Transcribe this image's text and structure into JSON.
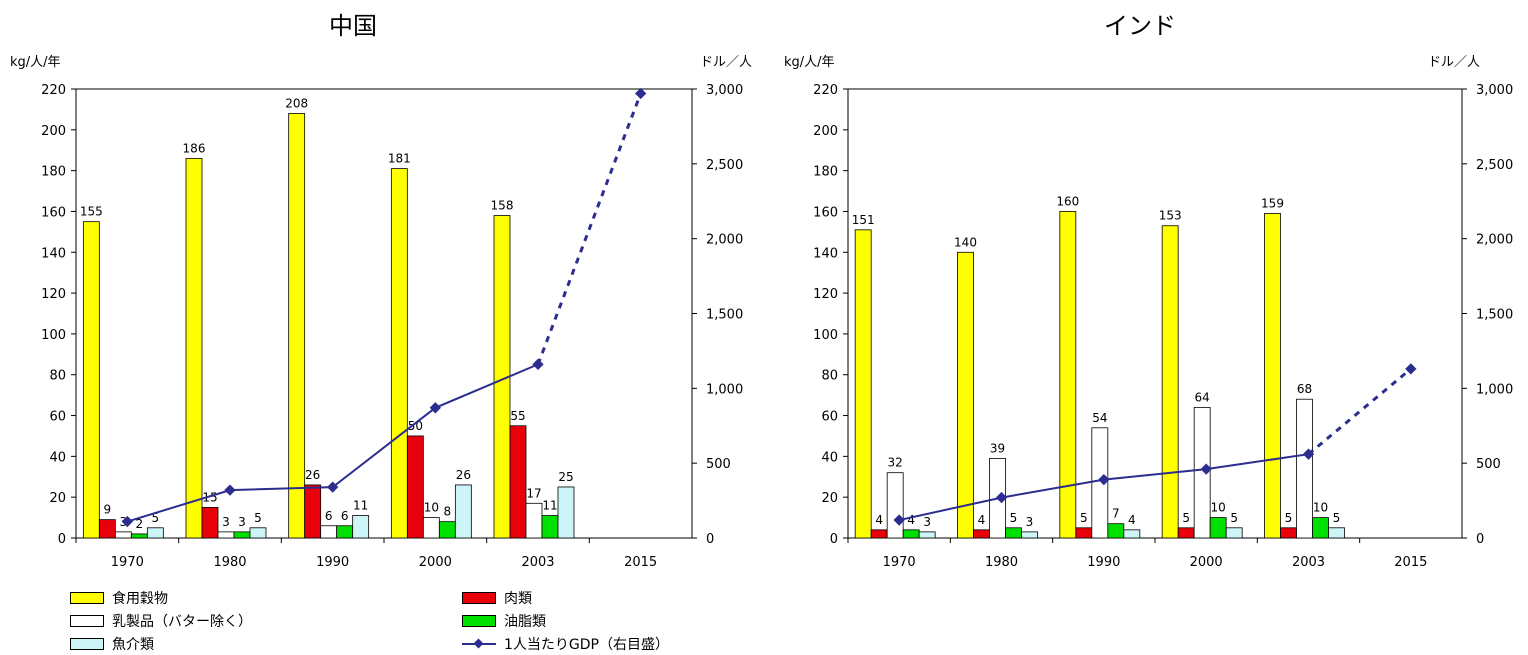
{
  "chart_data": [
    {
      "type": "bar",
      "title": "中国",
      "ylabel_left": "kg/人/年",
      "ylabel_right": "ドル／人",
      "categories": [
        "1970",
        "1980",
        "1990",
        "2000",
        "2003",
        "2015"
      ],
      "ylim": [
        0,
        220
      ],
      "y2lim": [
        0,
        3000
      ],
      "y_ticks": [
        "0",
        "20",
        "40",
        "60",
        "80",
        "100",
        "120",
        "140",
        "160",
        "180",
        "200",
        "220"
      ],
      "y2_ticks": [
        "0",
        "500",
        "1,000",
        "1,500",
        "2,000",
        "2,500",
        "3,000"
      ],
      "series": [
        {
          "name": "食用穀物",
          "color": "#ffff00",
          "values": [
            155,
            186,
            208,
            181,
            158,
            null
          ],
          "labels": [
            "155",
            "186",
            "208",
            "181",
            "158",
            ""
          ]
        },
        {
          "name": "肉類",
          "color": "#e8000b",
          "values": [
            9,
            15,
            26,
            50,
            55,
            null
          ],
          "labels": [
            "9",
            "15",
            "26",
            "50",
            "55",
            ""
          ]
        },
        {
          "name": "乳製品（バター除く）",
          "color": "#ffffff",
          "values": [
            3,
            3,
            6,
            10,
            17,
            null
          ],
          "labels": [
            "3",
            "3",
            "6",
            "10",
            "17",
            ""
          ]
        },
        {
          "name": "油脂類",
          "color": "#00e000",
          "values": [
            2,
            3,
            6,
            8,
            11,
            null
          ],
          "labels": [
            "2",
            "3",
            "6",
            "8",
            "11",
            ""
          ]
        },
        {
          "name": "魚介類",
          "color": "#cdf5f7",
          "values": [
            5,
            5,
            11,
            26,
            25,
            null
          ],
          "labels": [
            "5",
            "5",
            "11",
            "26",
            "25",
            ""
          ]
        }
      ],
      "line_series": {
        "name": "1人当たりGDP（右目盛）",
        "color": "#2b2d8f",
        "values": [
          110,
          320,
          340,
          870,
          1160,
          2970
        ],
        "dashed_from_index": 4
      }
    },
    {
      "type": "bar",
      "title": "インド",
      "ylabel_left": "kg/人/年",
      "ylabel_right": "ドル／人",
      "categories": [
        "1970",
        "1980",
        "1990",
        "2000",
        "2003",
        "2015"
      ],
      "ylim": [
        0,
        220
      ],
      "y2lim": [
        0,
        3000
      ],
      "y_ticks": [
        "0",
        "20",
        "40",
        "60",
        "80",
        "100",
        "120",
        "140",
        "160",
        "180",
        "200",
        "220"
      ],
      "y2_ticks": [
        "0",
        "500",
        "1,000",
        "1,500",
        "2,000",
        "2,500",
        "3,000"
      ],
      "series": [
        {
          "name": "食用穀物",
          "color": "#ffff00",
          "values": [
            151,
            140,
            160,
            153,
            159,
            null
          ],
          "labels": [
            "151",
            "140",
            "160",
            "153",
            "159",
            ""
          ]
        },
        {
          "name": "肉類",
          "color": "#e8000b",
          "values": [
            4,
            4,
            5,
            5,
            5,
            null
          ],
          "labels": [
            "4",
            "4",
            "5",
            "5",
            "5",
            ""
          ]
        },
        {
          "name": "乳製品（バター除く）",
          "color": "#ffffff",
          "values": [
            32,
            39,
            54,
            64,
            68,
            null
          ],
          "labels": [
            "32",
            "39",
            "54",
            "64",
            "68",
            ""
          ]
        },
        {
          "name": "油脂類",
          "color": "#00e000",
          "values": [
            4,
            5,
            7,
            10,
            10,
            null
          ],
          "labels": [
            "4",
            "5",
            "7",
            "10",
            "10",
            ""
          ]
        },
        {
          "name": "魚介類",
          "color": "#cdf5f7",
          "values": [
            3,
            3,
            4,
            5,
            5,
            null
          ],
          "labels": [
            "3",
            "3",
            "4",
            "5",
            "5",
            ""
          ]
        }
      ],
      "line_series": {
        "name": "1人当たりGDP（右目盛）",
        "color": "#2b2d8f",
        "values": [
          120,
          270,
          390,
          460,
          560,
          1130
        ],
        "dashed_from_index": 4
      }
    }
  ],
  "legend": [
    {
      "name": "食用穀物",
      "color": "#ffff00",
      "kind": "bar"
    },
    {
      "name": "乳製品（バター除く）",
      "color": "#ffffff",
      "kind": "bar"
    },
    {
      "name": "魚介類",
      "color": "#cdf5f7",
      "kind": "bar"
    },
    {
      "name": "肉類",
      "color": "#e8000b",
      "kind": "bar"
    },
    {
      "name": "油脂類",
      "color": "#00e000",
      "kind": "bar"
    },
    {
      "name": "1人当たりGDP（右目盛）",
      "color": "#2b2d8f",
      "kind": "line"
    }
  ]
}
